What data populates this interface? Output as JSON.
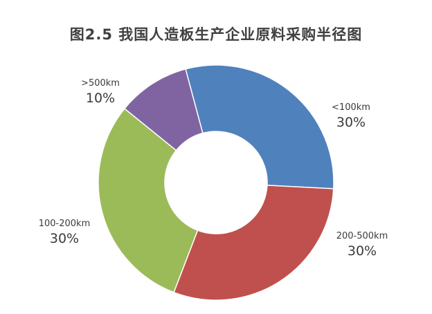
{
  "chart_data": {
    "type": "pie",
    "title": "图2.5  我国人造板生产企业原料采购半径图",
    "donut": true,
    "categories": [
      "<100km",
      "200-500km",
      "100-200km",
      ">500km"
    ],
    "values": [
      30,
      30,
      30,
      10
    ],
    "value_labels": [
      "30%",
      "30%",
      "30%",
      "10%"
    ],
    "colors": [
      "#4f81bd",
      "#c0504d",
      "#9bbb59",
      "#8064a2"
    ],
    "legend": "none"
  }
}
